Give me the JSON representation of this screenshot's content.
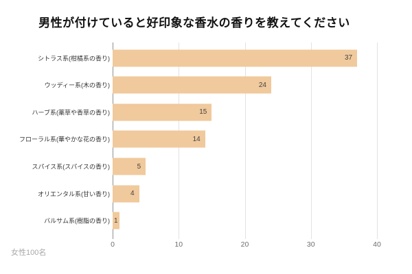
{
  "title": "男性が付けていると好印象な香水の香りを教えてください",
  "source_note": "女性100名",
  "colors": {
    "background": "#ffffff",
    "bar": "#f0c99c",
    "value_label": "#434343",
    "category_label": "#333333",
    "axis_tick_label": "#6e6e6e",
    "gridline": "#e2e2e2",
    "axis_line": "#909090",
    "title": "#111111",
    "source_note": "#a8a8a8"
  },
  "chart_data": {
    "type": "bar",
    "orientation": "horizontal",
    "title": "男性が付けていると好印象な香水の香りを教えてください",
    "categories": [
      "シトラス系(柑橘系の香り)",
      "ウッディー系(木の香り)",
      "ハーブ系(薬草や香草の香り)",
      "フローラル系(華やかな花の香り)",
      "スパイス系(スパイスの香り)",
      "オリエンタル系(甘い香り)",
      "バルサム系(樹脂の香り)"
    ],
    "values": [
      37,
      24,
      15,
      14,
      5,
      4,
      1
    ],
    "xlabel": "",
    "ylabel": "",
    "xlim": [
      0,
      40
    ],
    "x_ticks": [
      0,
      10,
      20,
      30,
      40
    ],
    "grid": true,
    "legend": false,
    "value_label_position": "inside-end",
    "annotation": "女性100名"
  }
}
